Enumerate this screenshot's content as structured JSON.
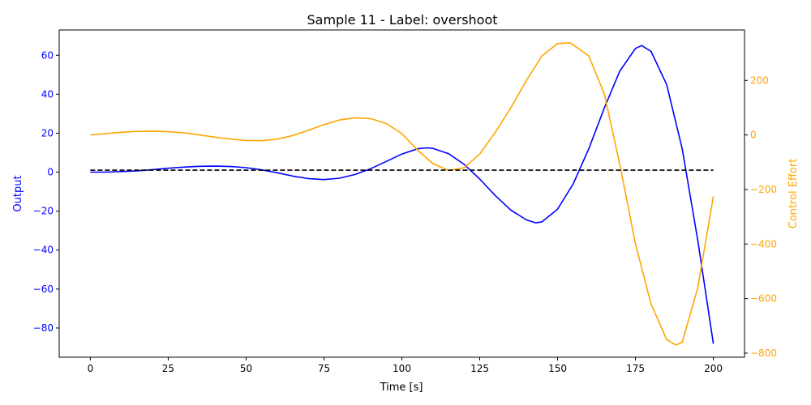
{
  "chart_data": {
    "type": "line",
    "title": "Sample 11 - Label: overshoot",
    "xlabel": "Time [s]",
    "ylabel_left": "Output",
    "ylabel_right": "Control Effort",
    "xlim": [
      -10,
      210
    ],
    "ylim_left": [
      -95,
      73
    ],
    "ylim_right": [
      -815,
      385
    ],
    "x_ticks": [
      0,
      25,
      50,
      75,
      100,
      125,
      150,
      175,
      200
    ],
    "y_left_ticks": [
      -80,
      -60,
      -40,
      -20,
      0,
      20,
      40,
      60
    ],
    "y_right_ticks": [
      -800,
      -600,
      -400,
      -200,
      0,
      200
    ],
    "grid": false,
    "colors": {
      "output": "#0000ff",
      "control": "#ffa500",
      "setpoint": "#000000",
      "left_axis_text": "#0000ff",
      "right_axis_text": "#ffa500"
    },
    "series": [
      {
        "axis": "left",
        "color": "#0000ff",
        "style": "solid",
        "x": [
          0,
          5,
          10,
          15,
          20,
          25,
          30,
          35,
          40,
          45,
          50,
          55,
          60,
          65,
          70,
          75,
          80,
          85,
          90,
          95,
          100,
          105,
          108,
          110,
          115,
          120,
          125,
          130,
          135,
          140,
          143,
          145,
          150,
          155,
          160,
          165,
          170,
          175,
          177,
          180,
          185,
          190,
          195,
          200
        ],
        "values": [
          0,
          0,
          0.3,
          0.7,
          1.3,
          2,
          2.6,
          3,
          3.1,
          2.9,
          2.3,
          1.2,
          -0.3,
          -2,
          -3.3,
          -3.8,
          -3.1,
          -1.2,
          1.8,
          5.5,
          9.3,
          12,
          12.5,
          12.2,
          9.5,
          4,
          -3.5,
          -12,
          -19.5,
          -24.5,
          -26,
          -25.5,
          -19,
          -6,
          12,
          33,
          52,
          63.5,
          65,
          62,
          45,
          12,
          -35,
          -88
        ]
      },
      {
        "axis": "right",
        "color": "#ffa500",
        "style": "solid",
        "x": [
          0,
          5,
          10,
          15,
          20,
          25,
          30,
          35,
          40,
          45,
          50,
          55,
          60,
          65,
          70,
          75,
          80,
          85,
          90,
          95,
          100,
          105,
          110,
          115,
          120,
          125,
          130,
          135,
          140,
          145,
          150,
          154,
          160,
          165,
          170,
          175,
          180,
          185,
          188,
          190,
          195,
          200
        ],
        "values": [
          0,
          5,
          10,
          13,
          14,
          12,
          8,
          0,
          -8,
          -15,
          -20,
          -21,
          -15,
          -2,
          17,
          38,
          55,
          63,
          60,
          42,
          5,
          -55,
          -105,
          -130,
          -120,
          -70,
          10,
          100,
          200,
          290,
          335,
          338,
          290,
          150,
          -110,
          -400,
          -620,
          -750,
          -770,
          -760,
          -560,
          -225
        ]
      },
      {
        "axis": "left",
        "color": "#000000",
        "style": "dashed",
        "x": [
          0,
          200
        ],
        "values": [
          1,
          1
        ]
      }
    ]
  }
}
